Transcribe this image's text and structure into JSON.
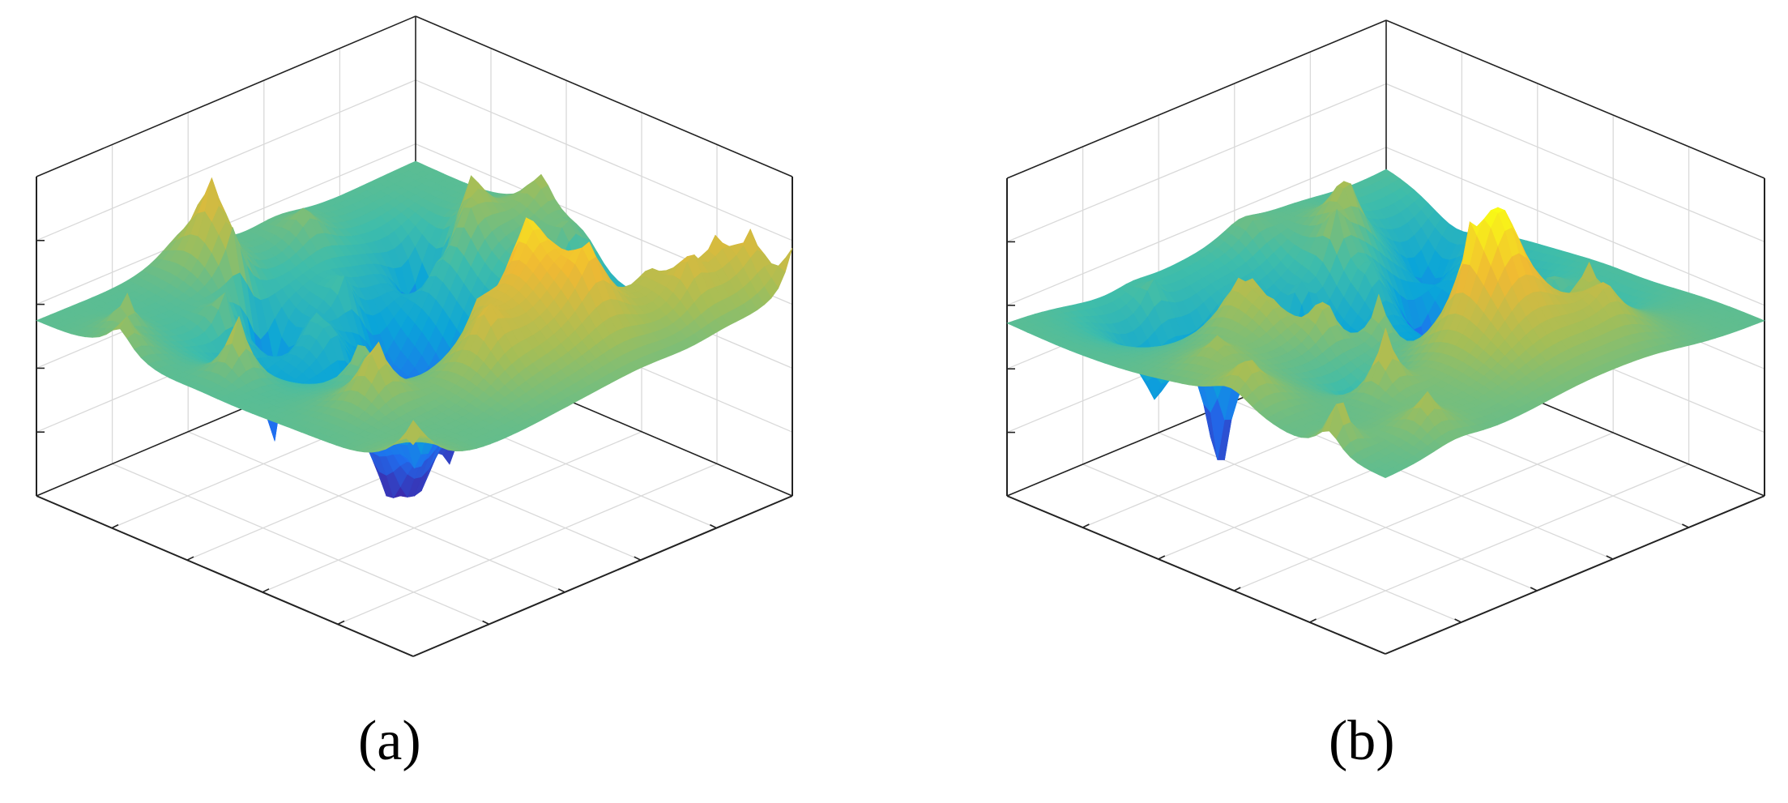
{
  "chart_data": [
    {
      "type": "surface",
      "panel_label": "(a)",
      "title": "",
      "xlabel": "",
      "ylabel": "",
      "zlabel": "",
      "grid": true,
      "colormap": "parula",
      "colors": [
        "#3e26a8",
        "#1f6ff0",
        "#0aa5d9",
        "#3fbdaa",
        "#a4be57",
        "#f0b933",
        "#f9fb15"
      ],
      "peak_count": 30,
      "pit_count": 3,
      "features": {
        "flat_corner_level": 0.55,
        "main_peak": {
          "x": 0.58,
          "y": 0.28,
          "height": 1.0
        },
        "deep_pits": [
          {
            "x": 0.42,
            "y": 0.8,
            "depth": 0.0
          },
          {
            "x": 0.8,
            "y": 0.78,
            "depth": 0.1
          }
        ]
      }
    },
    {
      "type": "surface",
      "panel_label": "(b)",
      "title": "",
      "xlabel": "",
      "ylabel": "",
      "zlabel": "",
      "grid": true,
      "colormap": "parula",
      "colors": [
        "#3e26a8",
        "#1f6ff0",
        "#0aa5d9",
        "#3fbdaa",
        "#a4be57",
        "#f0b933",
        "#f9fb15"
      ],
      "peak_count": 25,
      "pit_count": 2,
      "features": {
        "flat_corner_level": 0.55,
        "main_peak": {
          "x": 0.55,
          "y": 0.25,
          "height": 1.0
        },
        "deep_pits": [
          {
            "x": 0.38,
            "y": 0.82,
            "depth": 0.0
          },
          {
            "x": 0.82,
            "y": 0.7,
            "depth": 0.1
          }
        ]
      }
    }
  ]
}
